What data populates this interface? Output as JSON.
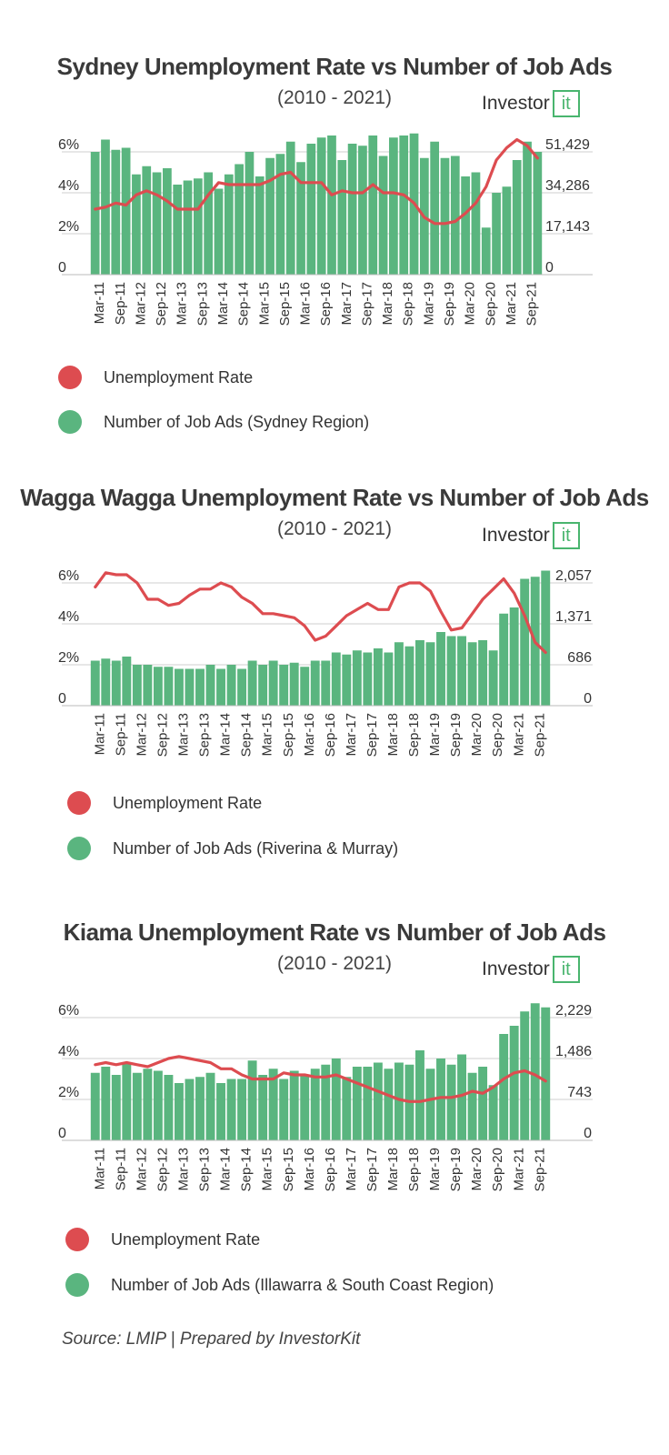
{
  "colors": {
    "bar": "#5ab57f",
    "line": "#dd4c50",
    "grid": "#cfcfcf",
    "logo_accent": "#49b56e"
  },
  "logo": {
    "text": "Investor",
    "box": "Kit"
  },
  "source": "Source: LMIP | Prepared by InvestorKit",
  "chart_data": [
    {
      "type": "bar",
      "title": "Sydney Unemployment Rate vs Number of Job Ads",
      "subtitle": "(2010 - 2021)",
      "y_left_ticks": [
        "6%",
        "4%",
        "2%",
        "0"
      ],
      "y_right_ticks": [
        "51,429",
        "34,286",
        "17,143",
        "0"
      ],
      "ylim_left": [
        0,
        6
      ],
      "ylim_right": [
        0,
        51429
      ],
      "x_tick_labels": [
        "Mar-11",
        "Sep-11",
        "Mar-12",
        "Sep-12",
        "Mar-13",
        "Sep-13",
        "Mar-14",
        "Sep-14",
        "Mar-15",
        "Sep-15",
        "Mar-16",
        "Sep-16",
        "Mar-17",
        "Sep-17",
        "Mar-18",
        "Sep-18",
        "Mar-19",
        "Sep-19",
        "Mar-20",
        "Sep-20",
        "Mar-21",
        "Sep-21"
      ],
      "series": [
        {
          "name": "Number of Job Ads (Sydney Region)",
          "kind": "bar",
          "values": [
            6.0,
            6.6,
            6.1,
            6.2,
            4.9,
            5.3,
            5.0,
            5.2,
            4.4,
            4.6,
            4.7,
            5.0,
            4.2,
            4.9,
            5.4,
            6.0,
            4.8,
            5.7,
            5.9,
            6.5,
            5.5,
            6.4,
            6.7,
            6.8,
            5.6,
            6.4,
            6.3,
            6.8,
            5.8,
            6.7,
            6.8,
            6.9,
            5.7,
            6.5,
            5.7,
            5.8,
            4.8,
            5.0,
            2.3,
            4.0,
            4.3,
            5.6,
            6.5,
            6.0
          ]
        },
        {
          "name": "Unemployment Rate",
          "kind": "line",
          "values": [
            3.2,
            3.3,
            3.5,
            3.4,
            3.9,
            4.1,
            3.9,
            3.6,
            3.2,
            3.2,
            3.2,
            3.9,
            4.5,
            4.4,
            4.4,
            4.4,
            4.4,
            4.6,
            4.9,
            5.0,
            4.5,
            4.5,
            4.5,
            3.9,
            4.1,
            4.0,
            4.0,
            4.4,
            4.0,
            4.0,
            3.9,
            3.5,
            2.8,
            2.5,
            2.5,
            2.6,
            3.0,
            3.5,
            4.3,
            5.6,
            6.2,
            6.6,
            6.3,
            5.7
          ]
        }
      ],
      "legend": [
        "Unemployment Rate",
        "Number of Job Ads (Sydney Region)"
      ]
    },
    {
      "type": "bar",
      "title": "Wagga Wagga Unemployment Rate vs Number of Job Ads",
      "subtitle": "(2010 - 2021)",
      "y_left_ticks": [
        "6%",
        "4%",
        "2%",
        "0"
      ],
      "y_right_ticks": [
        "2,057",
        "1,371",
        "686",
        "0"
      ],
      "ylim_left": [
        0,
        6
      ],
      "ylim_right": [
        0,
        2057
      ],
      "x_tick_labels": [
        "Mar-11",
        "Sep-11",
        "Mar-12",
        "Sep-12",
        "Mar-13",
        "Sep-13",
        "Mar-14",
        "Sep-14",
        "Mar-15",
        "Sep-15",
        "Mar-16",
        "Sep-16",
        "Mar-17",
        "Sep-17",
        "Mar-18",
        "Sep-18",
        "Mar-19",
        "Sep-19",
        "Mar-20",
        "Sep-20",
        "Mar-21",
        "Sep-21"
      ],
      "series": [
        {
          "name": "Number of Job Ads (Riverina & Murray)",
          "kind": "bar",
          "values": [
            2.2,
            2.3,
            2.2,
            2.4,
            2.0,
            2.0,
            1.9,
            1.9,
            1.8,
            1.8,
            1.8,
            2.0,
            1.8,
            2.0,
            1.8,
            2.2,
            2.0,
            2.2,
            2.0,
            2.1,
            1.9,
            2.2,
            2.2,
            2.6,
            2.5,
            2.7,
            2.6,
            2.8,
            2.6,
            3.1,
            2.9,
            3.2,
            3.1,
            3.6,
            3.4,
            3.4,
            3.1,
            3.2,
            2.7,
            4.5,
            4.8,
            6.2,
            6.3,
            6.6
          ]
        },
        {
          "name": "Unemployment Rate",
          "kind": "line",
          "values": [
            5.8,
            6.5,
            6.4,
            6.4,
            6.0,
            5.2,
            5.2,
            4.9,
            5.0,
            5.4,
            5.7,
            5.7,
            6.0,
            5.8,
            5.3,
            5.0,
            4.5,
            4.5,
            4.4,
            4.3,
            3.9,
            3.2,
            3.4,
            3.9,
            4.4,
            4.7,
            5.0,
            4.7,
            4.7,
            5.8,
            6.0,
            6.0,
            5.6,
            4.6,
            3.7,
            3.8,
            4.5,
            5.2,
            5.7,
            6.2,
            5.5,
            4.4,
            3.1,
            2.6
          ]
        }
      ],
      "legend": [
        "Unemployment Rate",
        "Number of Job Ads (Riverina & Murray)"
      ]
    },
    {
      "type": "bar",
      "title": "Kiama Unemployment Rate vs Number of Job Ads",
      "subtitle": "(2010 - 2021)",
      "y_left_ticks": [
        "6%",
        "4%",
        "2%",
        "0"
      ],
      "y_right_ticks": [
        "2,229",
        "1,486",
        "743",
        "0"
      ],
      "ylim_left": [
        0,
        6
      ],
      "ylim_right": [
        0,
        2229
      ],
      "x_tick_labels": [
        "Mar-11",
        "Sep-11",
        "Mar-12",
        "Sep-12",
        "Mar-13",
        "Sep-13",
        "Mar-14",
        "Sep-14",
        "Mar-15",
        "Sep-15",
        "Mar-16",
        "Sep-16",
        "Mar-17",
        "Sep-17",
        "Mar-18",
        "Sep-18",
        "Mar-19",
        "Sep-19",
        "Mar-20",
        "Sep-20",
        "Mar-21",
        "Sep-21"
      ],
      "series": [
        {
          "name": "Number of Job Ads (Illawarra & South Coast Region)",
          "kind": "bar",
          "values": [
            3.3,
            3.6,
            3.2,
            3.8,
            3.3,
            3.5,
            3.4,
            3.2,
            2.8,
            3.0,
            3.1,
            3.3,
            2.8,
            3.0,
            3.0,
            3.9,
            3.2,
            3.5,
            3.0,
            3.4,
            3.2,
            3.5,
            3.7,
            4.0,
            3.1,
            3.6,
            3.6,
            3.8,
            3.5,
            3.8,
            3.7,
            4.4,
            3.5,
            4.0,
            3.7,
            4.2,
            3.3,
            3.6,
            2.7,
            5.2,
            5.6,
            6.3,
            6.7,
            6.5
          ]
        },
        {
          "name": "Unemployment Rate",
          "kind": "line",
          "values": [
            3.7,
            3.8,
            3.7,
            3.8,
            3.7,
            3.6,
            3.8,
            4.0,
            4.1,
            4.0,
            3.9,
            3.8,
            3.5,
            3.5,
            3.2,
            3.0,
            3.0,
            3.0,
            3.3,
            3.2,
            3.2,
            3.1,
            3.1,
            3.2,
            3.0,
            2.8,
            2.6,
            2.4,
            2.2,
            2.0,
            1.9,
            1.9,
            2.0,
            2.1,
            2.1,
            2.2,
            2.4,
            2.3,
            2.6,
            3.0,
            3.3,
            3.4,
            3.2,
            2.9
          ]
        }
      ],
      "legend": [
        "Unemployment Rate",
        "Number of Job Ads (Illawarra & South Coast Region)"
      ]
    }
  ]
}
